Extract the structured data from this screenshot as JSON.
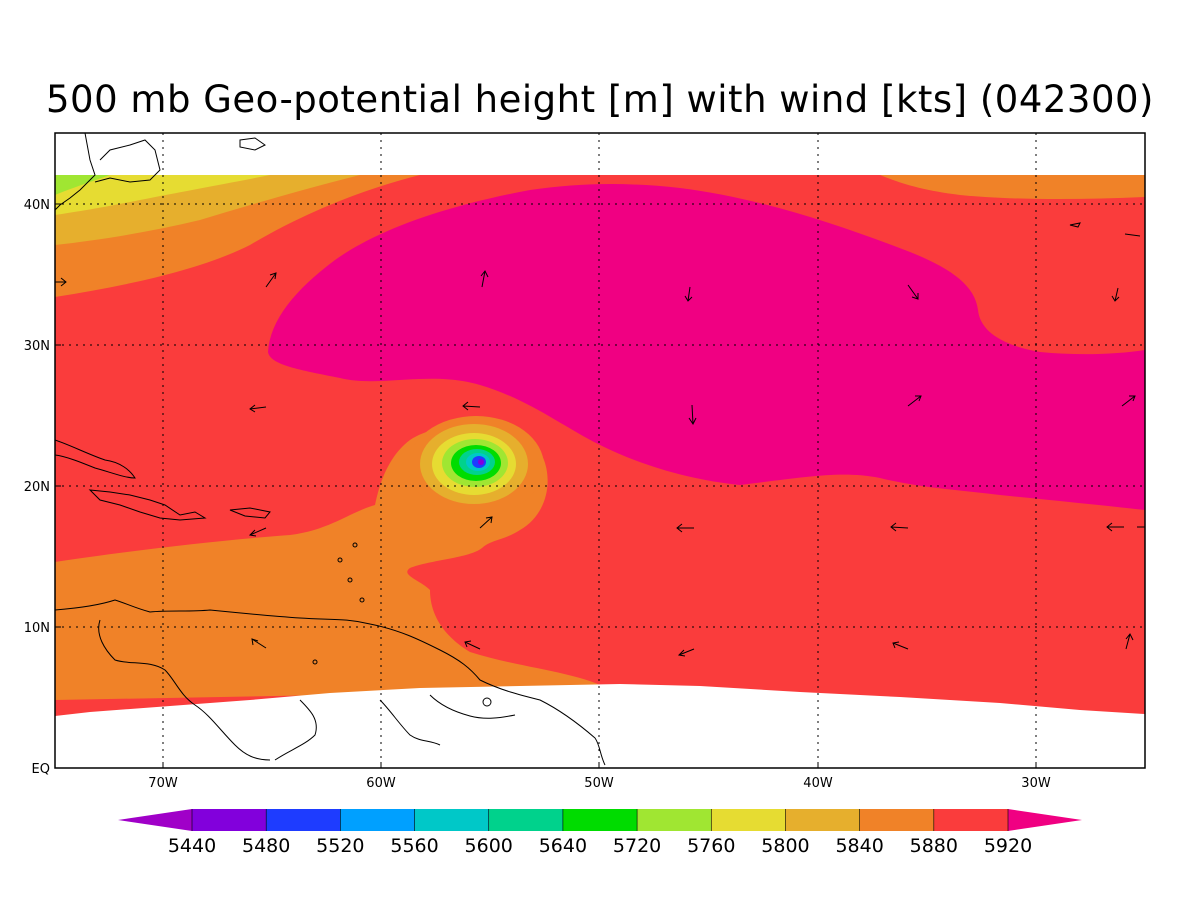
{
  "title": "500 mb Geo-potential height [m] with wind [kts] (042300)",
  "axes": {
    "lon_labels": [
      "70W",
      "60W",
      "50W",
      "40W",
      "30W"
    ],
    "lat_labels": [
      "40N",
      "30N",
      "20N",
      "10N",
      "EQ"
    ],
    "lon_range": [
      -75,
      -25
    ],
    "lat_range": [
      0,
      45
    ]
  },
  "colorbar": {
    "labels": [
      "5440",
      "5480",
      "5520",
      "5560",
      "5600",
      "5640",
      "5720",
      "5760",
      "5800",
      "5840",
      "5880",
      "5920"
    ],
    "colors": [
      "#a000c8",
      "#8200dc",
      "#1e3cff",
      "#00a0ff",
      "#00c8c8",
      "#00d28c",
      "#00dc00",
      "#a0e632",
      "#e6dc32",
      "#e6af2d",
      "#f08228",
      "#fa3c3c",
      "#f00082"
    ]
  },
  "fill_colors": {
    "high": "#f00082",
    "mid": "#fa3c3c",
    "orange": "#f08228",
    "gold": "#e6af2d",
    "yellow": "#e6dc32",
    "lime": "#a0e632",
    "green": "#00dc00",
    "teal": "#00c8c8",
    "blue": "#1e3cff",
    "violet": "#8200dc"
  }
}
